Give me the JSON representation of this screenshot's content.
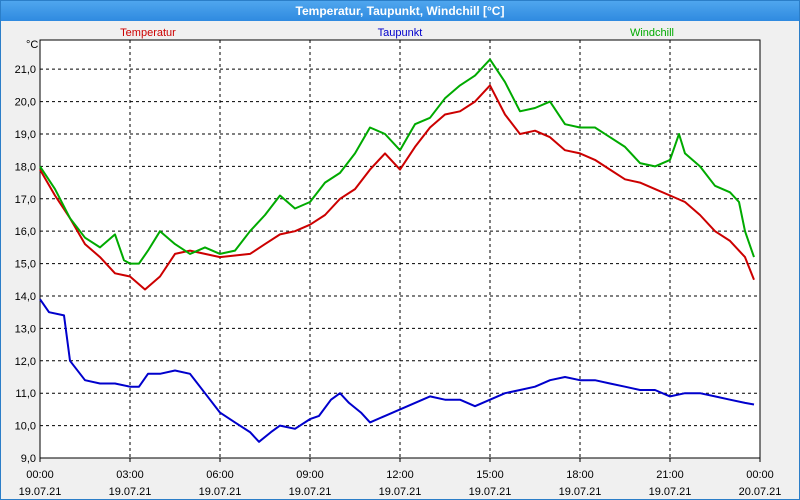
{
  "window": {
    "title": "Temperatur, Taupunkt, Windchill [°C]"
  },
  "chart_data": {
    "type": "line",
    "title": "Temperatur, Taupunkt, Windchill [°C]",
    "ylabel": "°C",
    "ylim": [
      9.0,
      21.9
    ],
    "yticks": [
      "9,0",
      "10,0",
      "11,0",
      "12,0",
      "13,0",
      "14,0",
      "15,0",
      "16,0",
      "17,0",
      "18,0",
      "19,0",
      "20,0",
      "21,0"
    ],
    "xticks": [
      {
        "time": "00:00",
        "date": "19.07.21"
      },
      {
        "time": "03:00",
        "date": "19.07.21"
      },
      {
        "time": "06:00",
        "date": "19.07.21"
      },
      {
        "time": "09:00",
        "date": "19.07.21"
      },
      {
        "time": "12:00",
        "date": "19.07.21"
      },
      {
        "time": "15:00",
        "date": "19.07.21"
      },
      {
        "time": "18:00",
        "date": "19.07.21"
      },
      {
        "time": "21:00",
        "date": "19.07.21"
      },
      {
        "time": "00:00",
        "date": "20.07.21"
      }
    ],
    "xlim_hours": [
      0,
      24
    ],
    "grid": true,
    "series": [
      {
        "name": "Temperatur",
        "color": "#cc0000",
        "x": [
          0,
          0.5,
          1,
          1.5,
          2,
          2.5,
          3,
          3.5,
          4,
          4.5,
          5,
          5.5,
          6,
          6.5,
          7,
          7.5,
          8,
          8.5,
          9,
          9.5,
          10,
          10.5,
          11,
          11.5,
          12,
          12.5,
          13,
          13.5,
          14,
          14.5,
          15,
          15.5,
          16,
          16.5,
          17,
          17.5,
          18,
          18.5,
          19,
          19.5,
          20,
          20.5,
          21,
          21.5,
          22,
          22.5,
          23,
          23.5,
          23.8
        ],
        "values": [
          17.9,
          17.1,
          16.4,
          15.6,
          15.2,
          14.7,
          14.6,
          14.2,
          14.6,
          15.3,
          15.4,
          15.3,
          15.2,
          15.25,
          15.3,
          15.6,
          15.9,
          16.0,
          16.2,
          16.5,
          17.0,
          17.3,
          17.9,
          18.4,
          17.9,
          18.6,
          19.2,
          19.6,
          19.7,
          20.0,
          20.5,
          19.6,
          19.0,
          19.1,
          18.9,
          18.5,
          18.4,
          18.2,
          17.9,
          17.6,
          17.5,
          17.3,
          17.1,
          16.9,
          16.5,
          16.0,
          15.7,
          15.2,
          14.5
        ]
      },
      {
        "name": "Taupunkt",
        "color": "#0000cc",
        "x": [
          0,
          0.3,
          0.8,
          1,
          1.5,
          2,
          2.5,
          3,
          3.3,
          3.6,
          4,
          4.5,
          5,
          5.5,
          6,
          6.5,
          7,
          7.3,
          7.7,
          8,
          8.5,
          9,
          9.3,
          9.7,
          10,
          10.3,
          10.7,
          11,
          11.5,
          12,
          12.5,
          13,
          13.5,
          14,
          14.5,
          15,
          15.5,
          16,
          16.5,
          17,
          17.5,
          18,
          18.5,
          19,
          19.5,
          20,
          20.5,
          21,
          21.5,
          22,
          22.5,
          23,
          23.5,
          23.8
        ],
        "values": [
          13.9,
          13.5,
          13.4,
          12.0,
          11.4,
          11.3,
          11.3,
          11.2,
          11.2,
          11.6,
          11.6,
          11.7,
          11.6,
          11.0,
          10.4,
          10.1,
          9.8,
          9.5,
          9.8,
          10.0,
          9.9,
          10.2,
          10.3,
          10.8,
          11.0,
          10.7,
          10.4,
          10.1,
          10.3,
          10.5,
          10.7,
          10.9,
          10.8,
          10.8,
          10.6,
          10.8,
          11.0,
          11.1,
          11.2,
          11.4,
          11.5,
          11.4,
          11.4,
          11.3,
          11.2,
          11.1,
          11.1,
          10.9,
          11.0,
          11.0,
          10.9,
          10.8,
          10.7,
          10.65
        ]
      },
      {
        "name": "Windchill",
        "color": "#00aa00",
        "x": [
          0,
          0.5,
          1,
          1.5,
          2,
          2.5,
          2.8,
          3,
          3.3,
          3.6,
          4,
          4.5,
          5,
          5.5,
          6,
          6.5,
          7,
          7.5,
          8,
          8.5,
          9,
          9.5,
          10,
          10.5,
          11,
          11.5,
          12,
          12.5,
          13,
          13.5,
          14,
          14.5,
          15,
          15.5,
          16,
          16.5,
          17,
          17.5,
          18,
          18.5,
          19,
          19.5,
          20,
          20.5,
          21,
          21.3,
          21.5,
          22,
          22.5,
          23,
          23.3,
          23.5,
          23.8
        ],
        "values": [
          18.0,
          17.3,
          16.4,
          15.8,
          15.5,
          15.9,
          15.1,
          15.0,
          15.0,
          15.4,
          16.0,
          15.6,
          15.3,
          15.5,
          15.3,
          15.4,
          16.0,
          16.5,
          17.1,
          16.7,
          16.9,
          17.5,
          17.8,
          18.4,
          19.2,
          19.0,
          18.5,
          19.3,
          19.5,
          20.1,
          20.5,
          20.8,
          21.3,
          20.6,
          19.7,
          19.8,
          20.0,
          19.3,
          19.2,
          19.2,
          18.9,
          18.6,
          18.1,
          18.0,
          18.2,
          19.0,
          18.4,
          18.0,
          17.4,
          17.2,
          16.9,
          16.0,
          15.2
        ]
      }
    ]
  }
}
